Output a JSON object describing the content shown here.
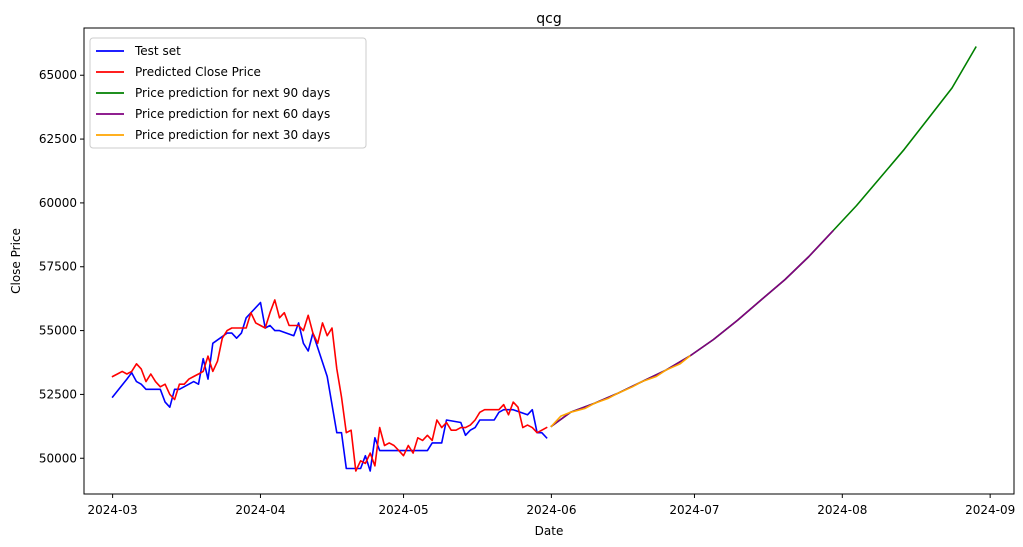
{
  "chart_data": {
    "type": "line",
    "title": "qcg",
    "xlabel": "Date",
    "ylabel": "Close Price",
    "x_type": "date",
    "xlim": [
      "2024-02-24",
      "2024-09-06"
    ],
    "ylim": [
      48600,
      66850
    ],
    "x_ticks": [
      "2024-03-01",
      "2024-04-01",
      "2024-05-01",
      "2024-06-01",
      "2024-07-01",
      "2024-08-01",
      "2024-09-01"
    ],
    "x_tick_labels": [
      "2024-03",
      "2024-04",
      "2024-05",
      "2024-06",
      "2024-07",
      "2024-08",
      "2024-09"
    ],
    "y_ticks": [
      50000,
      52500,
      55000,
      57500,
      60000,
      62500,
      65000
    ],
    "y_tick_labels": [
      "50000",
      "52500",
      "55000",
      "57500",
      "60000",
      "62500",
      "65000"
    ],
    "grid": false,
    "legend_position": "top-left",
    "series": [
      {
        "name": "Test set",
        "color": "#0000ff",
        "x": [
          "2024-03-01",
          "2024-03-04",
          "2024-03-05",
          "2024-03-06",
          "2024-03-07",
          "2024-03-08",
          "2024-03-11",
          "2024-03-12",
          "2024-03-13",
          "2024-03-14",
          "2024-03-15",
          "2024-03-18",
          "2024-03-19",
          "2024-03-20",
          "2024-03-21",
          "2024-03-22",
          "2024-03-25",
          "2024-03-26",
          "2024-03-27",
          "2024-03-28",
          "2024-03-29",
          "2024-04-01",
          "2024-04-02",
          "2024-04-03",
          "2024-04-04",
          "2024-04-05",
          "2024-04-08",
          "2024-04-09",
          "2024-04-10",
          "2024-04-11",
          "2024-04-12",
          "2024-04-15",
          "2024-04-16",
          "2024-04-17",
          "2024-04-18",
          "2024-04-19",
          "2024-04-22",
          "2024-04-23",
          "2024-04-24",
          "2024-04-25",
          "2024-04-26",
          "2024-04-29",
          "2024-05-02",
          "2024-05-03",
          "2024-05-06",
          "2024-05-07",
          "2024-05-08",
          "2024-05-09",
          "2024-05-10",
          "2024-05-13",
          "2024-05-14",
          "2024-05-15",
          "2024-05-16",
          "2024-05-17",
          "2024-05-20",
          "2024-05-21",
          "2024-05-22",
          "2024-05-23",
          "2024-05-24",
          "2024-05-27",
          "2024-05-28",
          "2024-05-29",
          "2024-05-30",
          "2024-05-31"
        ],
        "y": [
          52400,
          53100,
          53350,
          53000,
          52900,
          52700,
          52700,
          52200,
          52000,
          52700,
          52700,
          53000,
          52900,
          53900,
          53100,
          54500,
          54900,
          54900,
          54700,
          54900,
          55500,
          56100,
          55100,
          55200,
          55000,
          55000,
          54800,
          55300,
          54500,
          54200,
          54900,
          53200,
          52100,
          51000,
          51000,
          49600,
          49600,
          50100,
          49500,
          50800,
          50300,
          50300,
          50300,
          50300,
          50300,
          50600,
          50600,
          50600,
          51500,
          51400,
          50900,
          51100,
          51200,
          51500,
          51500,
          51800,
          51900,
          51900,
          51900,
          51700,
          51900,
          51000,
          51000,
          50800
        ],
        "values_note": ""
      },
      {
        "name": "Predicted Close Price",
        "color": "#ff0000",
        "x": [
          "2024-03-01",
          "2024-03-02",
          "2024-03-03",
          "2024-03-04",
          "2024-03-05",
          "2024-03-06",
          "2024-03-07",
          "2024-03-08",
          "2024-03-09",
          "2024-03-10",
          "2024-03-11",
          "2024-03-12",
          "2024-03-13",
          "2024-03-14",
          "2024-03-15",
          "2024-03-16",
          "2024-03-17",
          "2024-03-18",
          "2024-03-19",
          "2024-03-20",
          "2024-03-21",
          "2024-03-22",
          "2024-03-23",
          "2024-03-24",
          "2024-03-25",
          "2024-03-26",
          "2024-03-27",
          "2024-03-28",
          "2024-03-29",
          "2024-03-30",
          "2024-03-31",
          "2024-04-01",
          "2024-04-02",
          "2024-04-03",
          "2024-04-04",
          "2024-04-05",
          "2024-04-06",
          "2024-04-07",
          "2024-04-08",
          "2024-04-09",
          "2024-04-10",
          "2024-04-11",
          "2024-04-12",
          "2024-04-13",
          "2024-04-14",
          "2024-04-15",
          "2024-04-16",
          "2024-04-17",
          "2024-04-18",
          "2024-04-19",
          "2024-04-20",
          "2024-04-21",
          "2024-04-22",
          "2024-04-23",
          "2024-04-24",
          "2024-04-25",
          "2024-04-26",
          "2024-04-27",
          "2024-04-28",
          "2024-04-29",
          "2024-04-30",
          "2024-05-01",
          "2024-05-02",
          "2024-05-03",
          "2024-05-04",
          "2024-05-05",
          "2024-05-06",
          "2024-05-07",
          "2024-05-08",
          "2024-05-09",
          "2024-05-10",
          "2024-05-11",
          "2024-05-12",
          "2024-05-13",
          "2024-05-14",
          "2024-05-15",
          "2024-05-16",
          "2024-05-17",
          "2024-05-18",
          "2024-05-19",
          "2024-05-20",
          "2024-05-21",
          "2024-05-22",
          "2024-05-23",
          "2024-05-24",
          "2024-05-25",
          "2024-05-26",
          "2024-05-27",
          "2024-05-28",
          "2024-05-29",
          "2024-05-30",
          "2024-05-31"
        ],
        "y": [
          53200,
          53300,
          53400,
          53300,
          53400,
          53700,
          53500,
          53000,
          53300,
          53000,
          52800,
          52900,
          52500,
          52300,
          52900,
          52900,
          53100,
          53200,
          53300,
          53400,
          54000,
          53400,
          53800,
          54700,
          55000,
          55100,
          55100,
          55100,
          55100,
          55700,
          55300,
          55200,
          55100,
          55700,
          56200,
          55500,
          55700,
          55200,
          55200,
          55200,
          55000,
          55600,
          54900,
          54500,
          55300,
          54800,
          55100,
          53500,
          52400,
          51000,
          51100,
          49500,
          49900,
          49800,
          50200,
          49700,
          51200,
          50500,
          50600,
          50500,
          50300,
          50100,
          50500,
          50200,
          50800,
          50700,
          50900,
          50700,
          51500,
          51200,
          51400,
          51100,
          51100,
          51200,
          51200,
          51300,
          51500,
          51800,
          51900,
          51900,
          51900,
          51900,
          52100,
          51700,
          52200,
          52000,
          51200,
          51300,
          51200,
          51000,
          51100,
          51200
        ],
        "values_note": ""
      },
      {
        "name": "Price prediction for next 90 days",
        "color": "#008000",
        "x": [
          "2024-06-01",
          "2024-06-05",
          "2024-06-10",
          "2024-06-15",
          "2024-06-20",
          "2024-06-25",
          "2024-06-30",
          "2024-07-05",
          "2024-07-10",
          "2024-07-15",
          "2024-07-20",
          "2024-07-25",
          "2024-07-30",
          "2024-08-04",
          "2024-08-09",
          "2024-08-14",
          "2024-08-19",
          "2024-08-24",
          "2024-08-29"
        ],
        "y": [
          51250,
          51800,
          52150,
          52550,
          53000,
          53450,
          54000,
          54650,
          55400,
          56200,
          57000,
          57900,
          58900,
          59900,
          61000,
          62100,
          63300,
          64500,
          66100
        ],
        "values_note": ""
      },
      {
        "name": "Price prediction for next 60 days",
        "color": "#800080",
        "x": [
          "2024-06-01",
          "2024-06-05",
          "2024-06-10",
          "2024-06-15",
          "2024-06-20",
          "2024-06-25",
          "2024-06-30",
          "2024-07-05",
          "2024-07-10",
          "2024-07-15",
          "2024-07-20",
          "2024-07-25",
          "2024-07-30"
        ],
        "y": [
          51250,
          51800,
          52150,
          52550,
          53000,
          53450,
          54000,
          54650,
          55400,
          56200,
          57000,
          57900,
          58900
        ],
        "values_note": ""
      },
      {
        "name": "Price prediction for next 30 days",
        "color": "#ffa500",
        "x": [
          "2024-06-01",
          "2024-06-03",
          "2024-06-05",
          "2024-06-08",
          "2024-06-10",
          "2024-06-13",
          "2024-06-15",
          "2024-06-18",
          "2024-06-20",
          "2024-06-23",
          "2024-06-25",
          "2024-06-28",
          "2024-06-30"
        ],
        "y": [
          51250,
          51650,
          51800,
          51950,
          52150,
          52350,
          52550,
          52800,
          53000,
          53200,
          53450,
          53700,
          54000
        ],
        "values_note": ""
      }
    ]
  }
}
